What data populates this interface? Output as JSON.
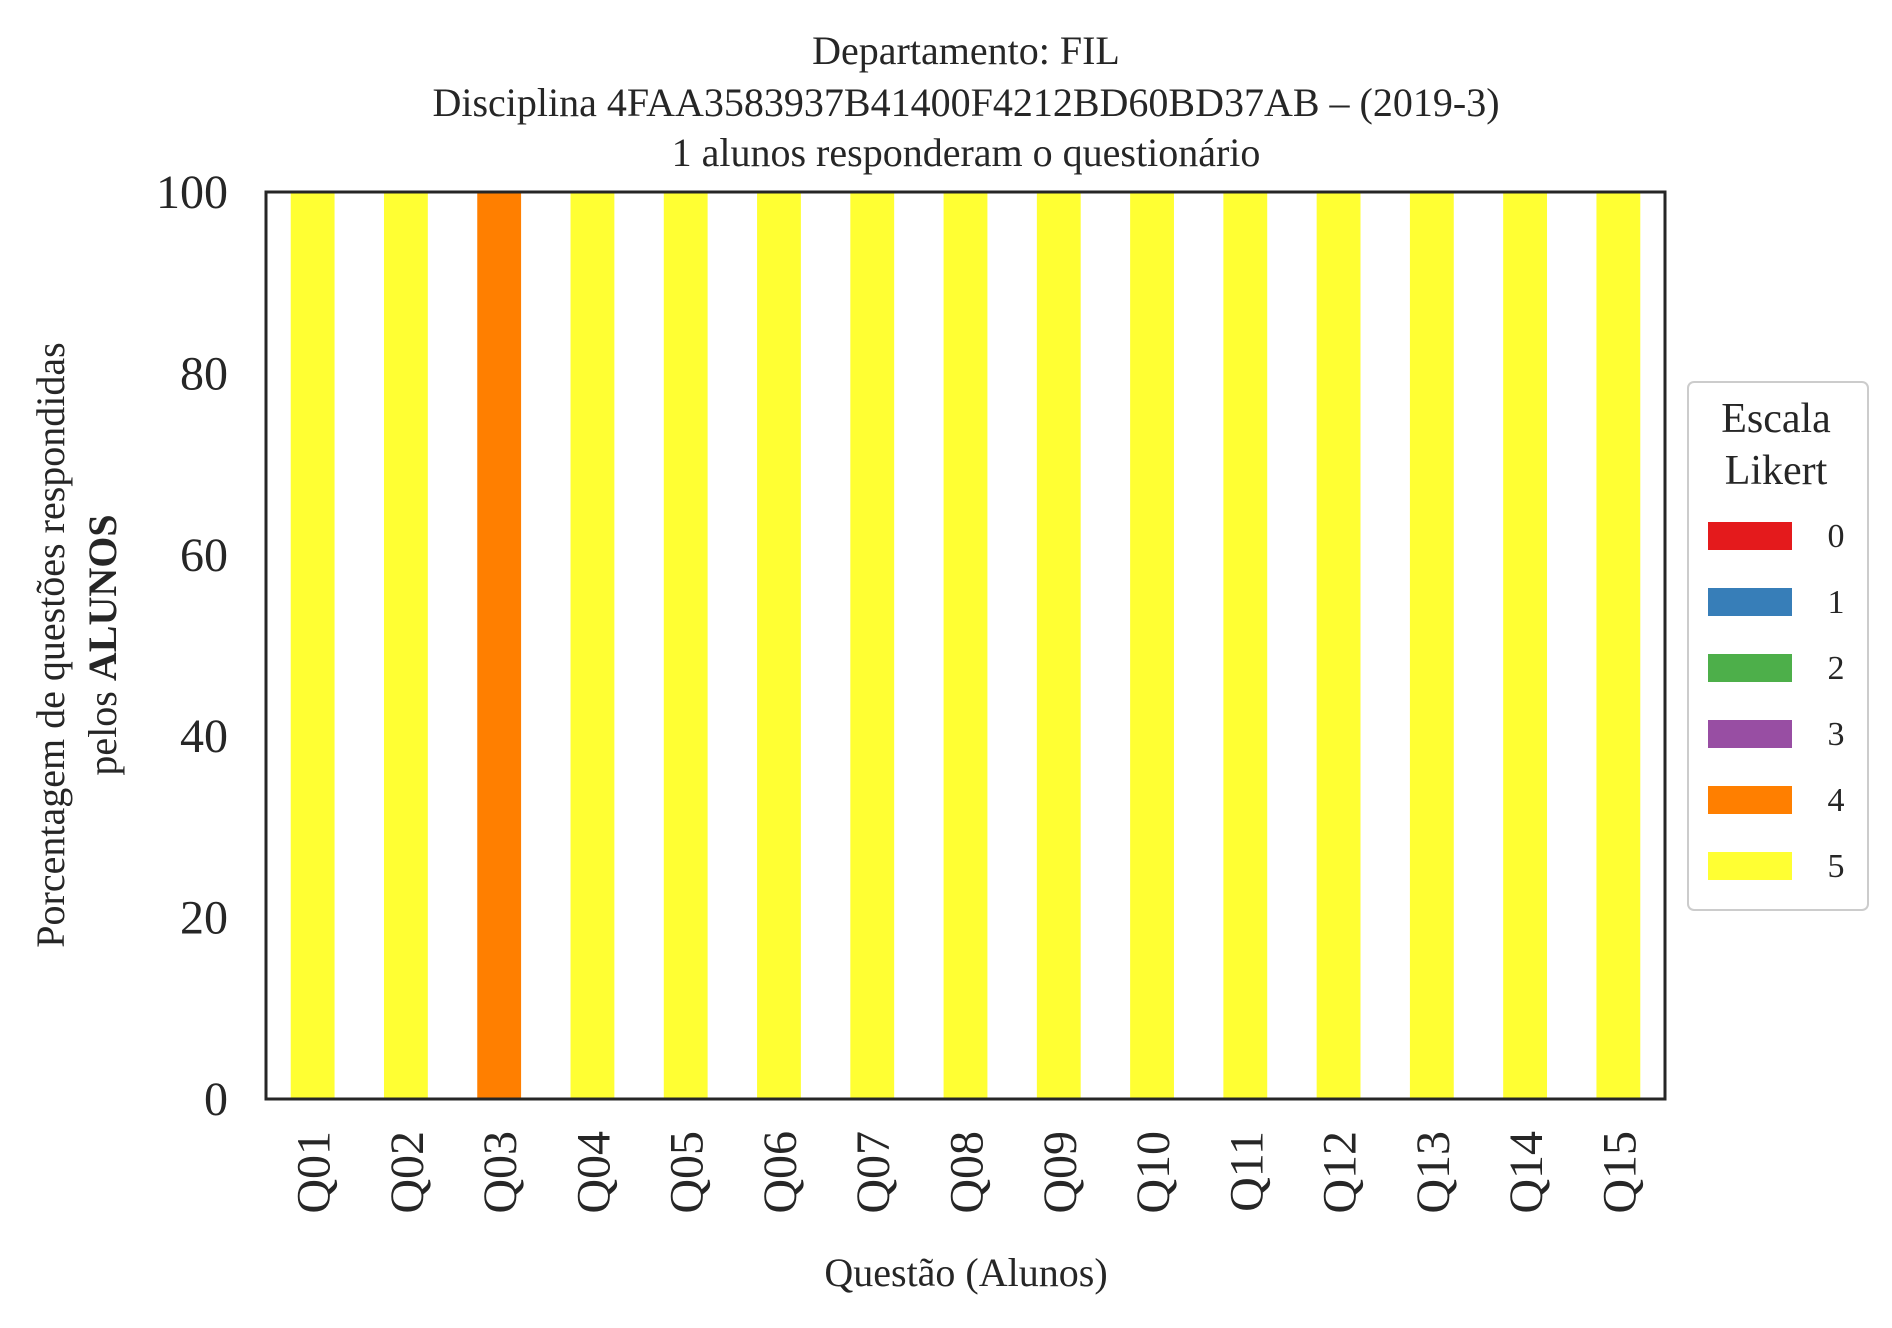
{
  "chart_data": {
    "type": "bar",
    "stacked": true,
    "title_lines": [
      "Departamento: FIL",
      "Disciplina 4FAA3583937B41400F4212BD60BD37AB – (2019-3)",
      "1 alunos responderam o questionário"
    ],
    "xlabel": "Questão (Alunos)",
    "ylabel_line1": "Porcentagem de questões respondidas",
    "ylabel_line2_prefix": "pelos ",
    "ylabel_line2_bold": "ALUNOS",
    "ylim": [
      0,
      100
    ],
    "yticks": [
      "0",
      "20",
      "40",
      "60",
      "80",
      "100"
    ],
    "grid": false,
    "legend": {
      "title_lines": [
        "Escala",
        "Likert"
      ],
      "placement": "right"
    },
    "categories": [
      "Q01",
      "Q02",
      "Q03",
      "Q04",
      "Q05",
      "Q06",
      "Q07",
      "Q08",
      "Q09",
      "Q10",
      "Q11",
      "Q12",
      "Q13",
      "Q14",
      "Q15"
    ],
    "series": [
      {
        "name": "0",
        "color": "#e41a1c",
        "values": [
          0,
          0,
          0,
          0,
          0,
          0,
          0,
          0,
          0,
          0,
          0,
          0,
          0,
          0,
          0
        ]
      },
      {
        "name": "1",
        "color": "#377eb8",
        "values": [
          0,
          0,
          0,
          0,
          0,
          0,
          0,
          0,
          0,
          0,
          0,
          0,
          0,
          0,
          0
        ]
      },
      {
        "name": "2",
        "color": "#4daf4a",
        "values": [
          0,
          0,
          0,
          0,
          0,
          0,
          0,
          0,
          0,
          0,
          0,
          0,
          0,
          0,
          0
        ]
      },
      {
        "name": "3",
        "color": "#984ea3",
        "values": [
          0,
          0,
          0,
          0,
          0,
          0,
          0,
          0,
          0,
          0,
          0,
          0,
          0,
          0,
          0
        ]
      },
      {
        "name": "4",
        "color": "#ff7f00",
        "values": [
          0,
          0,
          100,
          0,
          0,
          0,
          0,
          0,
          0,
          0,
          0,
          0,
          0,
          0,
          0
        ]
      },
      {
        "name": "5",
        "color": "#ffff33",
        "values": [
          100,
          100,
          0,
          100,
          100,
          100,
          100,
          100,
          100,
          100,
          100,
          100,
          100,
          100,
          100
        ]
      }
    ]
  }
}
